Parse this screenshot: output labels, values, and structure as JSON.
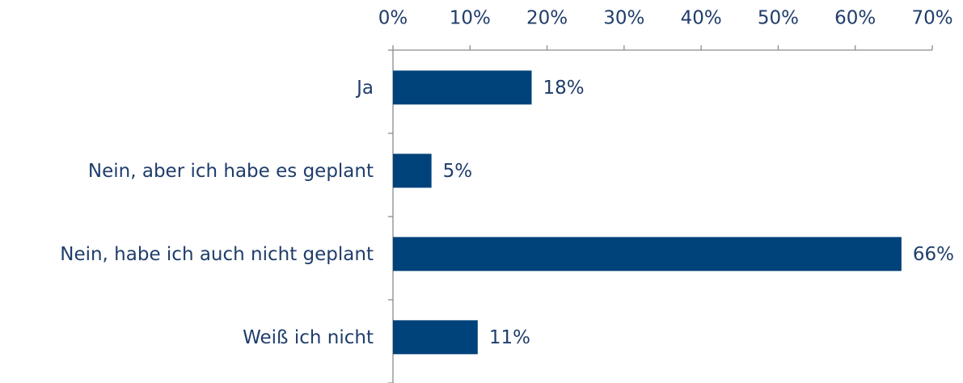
{
  "chart_data": {
    "type": "bar",
    "orientation": "horizontal",
    "categories": [
      "Ja",
      "Nein, aber ich habe es geplant",
      "Nein, habe ich auch nicht geplant",
      "Weiß ich nicht"
    ],
    "values": [
      18,
      5,
      66,
      11
    ],
    "value_labels": [
      "18%",
      "5%",
      "66%",
      "11%"
    ],
    "color": "#00427a",
    "xlim": [
      0,
      70
    ],
    "xticks": [
      {
        "value": 0,
        "label": "0%"
      },
      {
        "value": 10,
        "label": "10%"
      },
      {
        "value": 20,
        "label": "20%"
      },
      {
        "value": 30,
        "label": "30%"
      },
      {
        "value": 40,
        "label": "40%"
      },
      {
        "value": 50,
        "label": "50%"
      },
      {
        "value": 60,
        "label": "60%"
      },
      {
        "value": 70,
        "label": "70%"
      }
    ],
    "grid": false
  }
}
